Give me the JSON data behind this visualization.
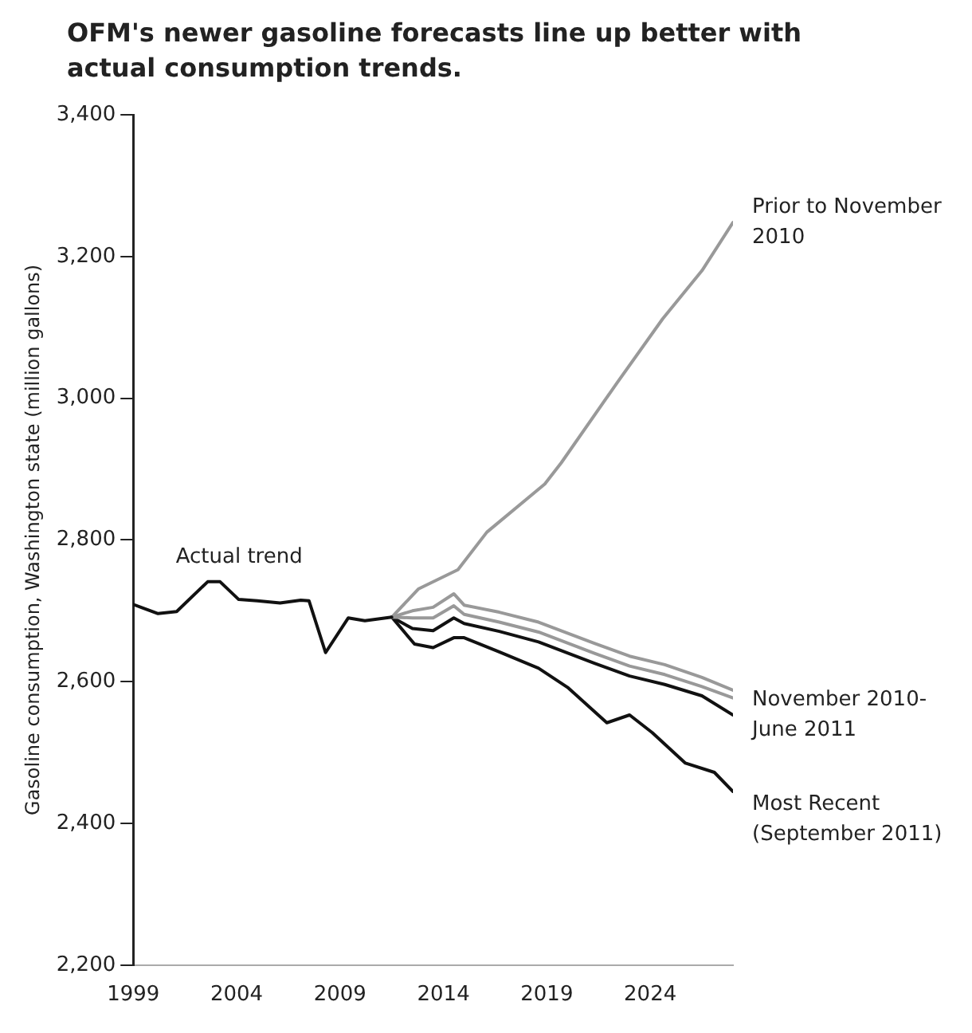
{
  "chart_data": {
    "type": "line",
    "title": "OFM's newer gasoline forecasts line up better with actual consumption trends.",
    "ylabel": "Gasoline consumption, Washington state (million gallons)",
    "xlim": [
      1999,
      2028
    ],
    "xticks": [
      1999,
      2004,
      2009,
      2014,
      2019,
      2024
    ],
    "ylim": [
      2200,
      3400
    ],
    "yticks": [
      {
        "value": 2200,
        "label": "2,200"
      },
      {
        "value": 2400,
        "label": "2,400"
      },
      {
        "value": 2600,
        "label": "2,600"
      },
      {
        "value": 2800,
        "label": "2,800"
      },
      {
        "value": 3000,
        "label": "3,000"
      },
      {
        "value": 3200,
        "label": "3,200"
      },
      {
        "value": 3400,
        "label": "3,400"
      }
    ],
    "grid": false,
    "legend": false,
    "marker": "none",
    "line_style": "solid",
    "series": [
      {
        "name": "Actual trend",
        "color": "#111111",
        "x": [
          1999,
          2000.2,
          2001.1,
          2002.6,
          2003.2,
          2004.1,
          2005,
          2006.1,
          2007.1,
          2007.5,
          2008.3,
          2009.4,
          2010.2,
          2011.5
        ],
        "values": [
          2709,
          2696,
          2699,
          2741,
          2741,
          2716,
          2714,
          2711,
          2715,
          2714,
          2641,
          2690,
          2686,
          2691
        ]
      },
      {
        "name": "Prior to November 2010",
        "color": "#999999",
        "x": [
          2011.5,
          2012.8,
          2014.7,
          2016.1,
          2018.9,
          2019.7,
          2022.4,
          2024.6,
          2026.5,
          2028
        ],
        "values": [
          2691,
          2731,
          2758,
          2811,
          2879,
          2909,
          3022,
          3112,
          3180,
          3248
        ]
      },
      {
        "color": "#999999",
        "x": [
          2011.5,
          2012.5,
          2013.5,
          2014.5,
          2015,
          2016.7,
          2018.6,
          2021.3,
          2023,
          2024.7,
          2026.5,
          2028
        ],
        "values": [
          2691,
          2700,
          2705,
          2724,
          2708,
          2698,
          2684,
          2654,
          2636,
          2624,
          2606,
          2588
        ]
      },
      {
        "color": "#999999",
        "x": [
          2011.5,
          2012.5,
          2013.5,
          2014.5,
          2015,
          2016.7,
          2018.6,
          2021.3,
          2023,
          2024.7,
          2026.5,
          2028
        ],
        "values": [
          2691,
          2690,
          2690,
          2707,
          2695,
          2684,
          2670,
          2640,
          2622,
          2610,
          2593,
          2577
        ]
      },
      {
        "name": "November 2010-June 2011",
        "color": "#111111",
        "x": [
          2011.5,
          2012.5,
          2013.5,
          2014.5,
          2015,
          2016.7,
          2018.6,
          2021.3,
          2023,
          2024.7,
          2026.5,
          2028
        ],
        "values": [
          2691,
          2675,
          2672,
          2690,
          2682,
          2671,
          2656,
          2626,
          2608,
          2596,
          2580,
          2553
        ]
      },
      {
        "name": "Most Recent (September 2011)",
        "color": "#111111",
        "x": [
          2011.5,
          2012.6,
          2013.5,
          2014.5,
          2015,
          2016.7,
          2018.6,
          2020,
          2021.9,
          2023,
          2024.1,
          2025.7,
          2027.1,
          2028
        ],
        "values": [
          2691,
          2653,
          2648,
          2662,
          2662,
          2642,
          2619,
          2592,
          2542,
          2553,
          2528,
          2485,
          2472,
          2445
        ]
      }
    ]
  }
}
